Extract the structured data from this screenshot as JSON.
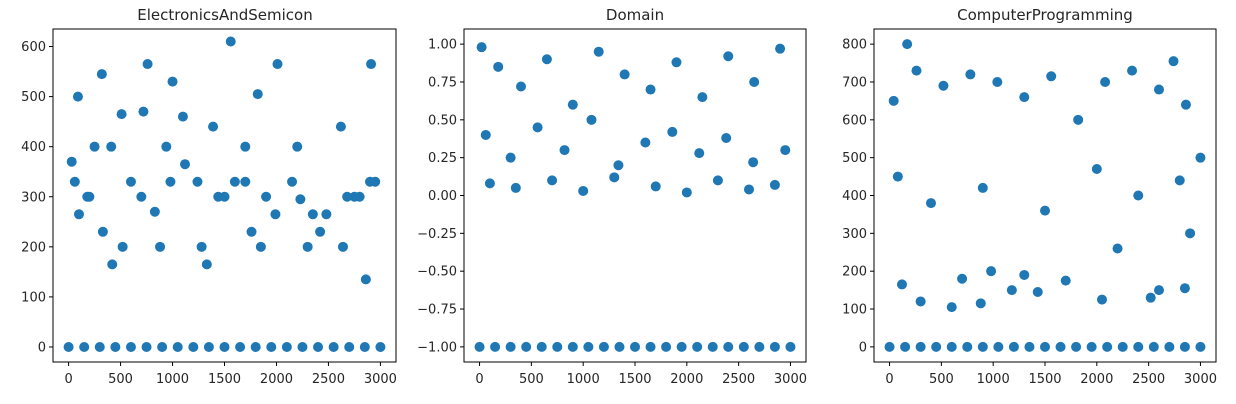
{
  "chart_data": [
    {
      "type": "scatter",
      "title": "ElectronicsAndSemicon",
      "xlabel": "",
      "ylabel": "",
      "xlim": [
        -150,
        3150
      ],
      "ylim": [
        -30,
        635
      ],
      "xticks": [
        "0",
        "500",
        "1000",
        "1500",
        "2000",
        "2500",
        "3000"
      ],
      "yticks": [
        "0",
        "100",
        "200",
        "300",
        "400",
        "500",
        "600"
      ],
      "color": "#1f77b4",
      "grid": false,
      "series": [
        {
          "values_x": [
            0,
            150,
            300,
            450,
            600,
            750,
            900,
            1050,
            1200,
            1350,
            1500,
            1650,
            1800,
            1950,
            2100,
            2250,
            2400,
            2550,
            2700,
            2850,
            3000,
            30,
            320,
            760,
            1000,
            1560,
            1820,
            2010,
            2620,
            2860,
            2910,
            60,
            200,
            330,
            410,
            520,
            700,
            830,
            980,
            1120,
            1280,
            1440,
            1600,
            1700,
            1900,
            2150,
            2300,
            2480,
            2750,
            2900,
            100,
            420,
            880,
            1330,
            1760,
            2200,
            2680,
            250,
            600,
            1100,
            1500,
            1990,
            2420,
            2800,
            180,
            720,
            1240,
            1850,
            2350,
            2950,
            90,
            510,
            940,
            1390,
            1700,
            2230,
            2640
          ],
          "values_y": [
            0,
            0,
            0,
            0,
            0,
            0,
            0,
            0,
            0,
            0,
            0,
            0,
            0,
            0,
            0,
            0,
            0,
            0,
            0,
            0,
            0,
            370,
            545,
            565,
            530,
            610,
            505,
            565,
            440,
            135,
            565,
            330,
            300,
            230,
            400,
            200,
            300,
            270,
            330,
            365,
            200,
            300,
            330,
            400,
            300,
            330,
            200,
            265,
            300,
            330,
            265,
            165,
            200,
            165,
            230,
            400,
            300,
            400,
            330,
            460,
            300,
            265,
            230,
            300,
            300,
            470,
            330,
            200,
            265,
            330,
            500,
            465,
            400,
            440,
            330,
            295,
            200
          ]
        }
      ]
    },
    {
      "type": "scatter",
      "title": "Domain",
      "xlabel": "",
      "ylabel": "",
      "xlim": [
        -150,
        3150
      ],
      "ylim": [
        -1.1,
        1.1
      ],
      "xticks": [
        "0",
        "500",
        "1000",
        "1500",
        "2000",
        "2500",
        "3000"
      ],
      "yticks": [
        "1.00",
        "0.75",
        "0.50",
        "0.25",
        "0.00",
        "−0.25",
        "−0.50",
        "−0.75",
        "−1.00"
      ],
      "color": "#1f77b4",
      "grid": false,
      "series": [
        {
          "values_x": [
            0,
            150,
            300,
            450,
            600,
            750,
            900,
            1050,
            1200,
            1350,
            1500,
            1650,
            1800,
            1950,
            2100,
            2250,
            2400,
            2550,
            2700,
            2850,
            3000,
            20,
            180,
            400,
            650,
            900,
            1150,
            1400,
            1650,
            1900,
            2150,
            2400,
            2650,
            2900,
            60,
            300,
            560,
            820,
            1080,
            1340,
            1600,
            1860,
            2120,
            2380,
            2640,
            2950,
            100,
            350,
            700,
            1000,
            1300,
            1700,
            2000,
            2300,
            2600,
            2850
          ],
          "values_y": [
            -1,
            -1,
            -1,
            -1,
            -1,
            -1,
            -1,
            -1,
            -1,
            -1,
            -1,
            -1,
            -1,
            -1,
            -1,
            -1,
            -1,
            -1,
            -1,
            -1,
            -1,
            0.98,
            0.85,
            0.72,
            0.9,
            0.6,
            0.95,
            0.8,
            0.7,
            0.88,
            0.65,
            0.92,
            0.75,
            0.97,
            0.4,
            0.25,
            0.45,
            0.3,
            0.5,
            0.2,
            0.35,
            0.42,
            0.28,
            0.38,
            0.22,
            0.3,
            0.08,
            0.05,
            0.1,
            0.03,
            0.12,
            0.06,
            0.02,
            0.1,
            0.04,
            0.07
          ]
        }
      ]
    },
    {
      "type": "scatter",
      "title": "ComputerProgramming",
      "xlabel": "",
      "ylabel": "",
      "xlim": [
        -150,
        3150
      ],
      "ylim": [
        -40,
        840
      ],
      "xticks": [
        "0",
        "500",
        "1000",
        "1500",
        "2000",
        "2500",
        "3000"
      ],
      "yticks": [
        "0",
        "100",
        "200",
        "300",
        "400",
        "500",
        "600",
        "700",
        "800"
      ],
      "color": "#1f77b4",
      "grid": false,
      "series": [
        {
          "values_x": [
            0,
            150,
            300,
            450,
            600,
            750,
            900,
            1050,
            1200,
            1350,
            1500,
            1650,
            1800,
            1950,
            2100,
            2250,
            2400,
            2550,
            2700,
            2850,
            3000,
            170,
            600,
            880,
            1180,
            1430,
            2050,
            2520,
            2740,
            2850,
            120,
            300,
            700,
            980,
            1300,
            1700,
            2200,
            2600,
            2900,
            40,
            260,
            520,
            780,
            1040,
            1300,
            1560,
            1820,
            2080,
            2340,
            2600,
            2860,
            3000,
            80,
            400,
            900,
            1500,
            2000,
            2400,
            2800
          ],
          "values_y": [
            0,
            0,
            0,
            0,
            0,
            0,
            0,
            0,
            0,
            0,
            0,
            0,
            0,
            0,
            0,
            0,
            0,
            0,
            0,
            0,
            0,
            800,
            105,
            115,
            150,
            145,
            125,
            130,
            755,
            155,
            165,
            120,
            180,
            200,
            190,
            175,
            260,
            150,
            300,
            650,
            730,
            690,
            720,
            700,
            660,
            715,
            600,
            700,
            730,
            680,
            640,
            500,
            450,
            380,
            420,
            360,
            470,
            400,
            440
          ]
        }
      ]
    }
  ]
}
